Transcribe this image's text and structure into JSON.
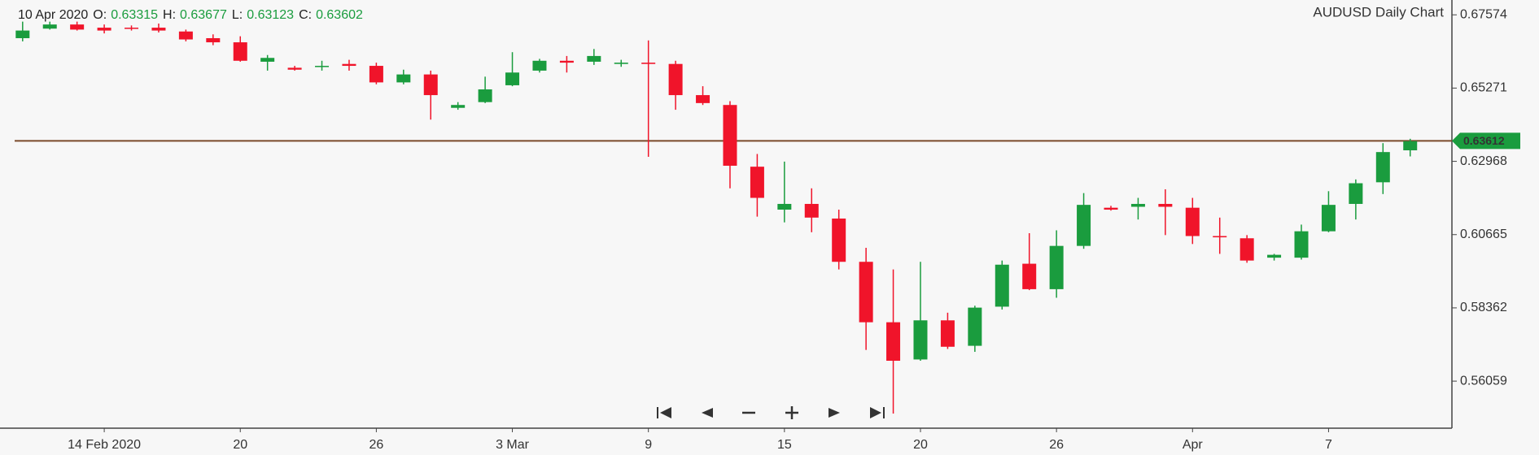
{
  "chart_data": {
    "type": "candlestick",
    "title": "AUDUSD Daily Chart",
    "info_date": "10 Apr 2020",
    "info_labels": [
      "O:",
      "H:",
      "L:",
      "C:"
    ],
    "categories": [
      null,
      null,
      null,
      "14 Feb 2020",
      null,
      null,
      null,
      null,
      "20",
      null,
      null,
      null,
      null,
      "26",
      null,
      null,
      null,
      null,
      "3 Mar",
      null,
      null,
      null,
      null,
      "9",
      null,
      null,
      null,
      null,
      "15",
      null,
      null,
      null,
      null,
      "20",
      null,
      null,
      null,
      null,
      "26",
      null,
      null,
      null,
      null,
      "Apr",
      null,
      null,
      null,
      null,
      "7",
      null,
      null,
      null
    ],
    "open": [
      0.6684,
      0.6714,
      0.6727,
      0.6717,
      0.6717,
      0.6717,
      0.6705,
      0.6684,
      0.6671,
      0.661,
      0.6591,
      0.6594,
      0.6603,
      0.6597,
      0.6545,
      0.657,
      0.6465,
      0.6483,
      0.6536,
      0.6582,
      0.6613,
      0.661,
      0.6603,
      0.6607,
      0.6603,
      0.6505,
      0.6474,
      0.628,
      0.6145,
      0.6163,
      0.6117,
      0.5981,
      0.5791,
      0.5674,
      0.5797,
      0.5717,
      0.584,
      0.5975,
      0.5895,
      0.6031,
      0.6151,
      0.6154,
      0.6163,
      0.6151,
      0.6062,
      0.6055,
      0.5994,
      0.5994,
      0.6077,
      0.6163,
      0.6231,
      0.63315
    ],
    "high": [
      0.6736,
      0.6736,
      0.6736,
      0.6727,
      0.6724,
      0.673,
      0.6711,
      0.6696,
      0.669,
      0.6631,
      0.6597,
      0.6613,
      0.6616,
      0.6607,
      0.6585,
      0.6582,
      0.6483,
      0.6563,
      0.664,
      0.6619,
      0.6628,
      0.665,
      0.6616,
      0.6677,
      0.6613,
      0.6533,
      0.6486,
      0.632,
      0.6296,
      0.6212,
      0.6145,
      0.6025,
      0.5957,
      0.5981,
      0.5821,
      0.5843,
      0.5985,
      0.6071,
      0.608,
      0.6197,
      0.6157,
      0.6182,
      0.6209,
      0.6182,
      0.612,
      0.6065,
      0.6006,
      0.6098,
      0.6203,
      0.624,
      0.6354,
      0.63677
    ],
    "low": [
      0.6674,
      0.6711,
      0.6708,
      0.6699,
      0.6708,
      0.6702,
      0.6674,
      0.6662,
      0.661,
      0.6582,
      0.6582,
      0.6582,
      0.6582,
      0.6539,
      0.6539,
      0.6428,
      0.6459,
      0.648,
      0.6533,
      0.6576,
      0.6576,
      0.66,
      0.6594,
      0.6311,
      0.6459,
      0.6474,
      0.6212,
      0.6123,
      0.6105,
      0.6074,
      0.5957,
      0.5704,
      0.5504,
      0.567,
      0.5707,
      0.5698,
      0.5831,
      0.5892,
      0.5868,
      0.6022,
      0.6142,
      0.6114,
      0.6065,
      0.6037,
      0.6006,
      0.5978,
      0.5985,
      0.5988,
      0.6074,
      0.6114,
      0.6194,
      0.63123
    ],
    "close": [
      0.6708,
      0.6727,
      0.6711,
      0.6708,
      0.6714,
      0.6708,
      0.668,
      0.6671,
      0.6613,
      0.6622,
      0.6585,
      0.6597,
      0.6597,
      0.6545,
      0.657,
      0.6505,
      0.6474,
      0.6523,
      0.6576,
      0.6613,
      0.6607,
      0.6628,
      0.6607,
      0.6603,
      0.6505,
      0.648,
      0.6283,
      0.6182,
      0.6163,
      0.612,
      0.5981,
      0.5791,
      0.567,
      0.5797,
      0.5714,
      0.5837,
      0.5972,
      0.5895,
      0.6031,
      0.616,
      0.6145,
      0.6163,
      0.6154,
      0.6062,
      0.6058,
      0.5985,
      0.6003,
      0.6077,
      0.616,
      0.6228,
      0.6326,
      0.63602
    ],
    "up_color": "#1a9c3e",
    "down_color": "#f0142a",
    "last_price": 0.63612,
    "last_price_line_color": "#7a4a2a",
    "ylim": [
      0.5458,
      0.6804
    ],
    "yticks": [
      0.67574,
      0.65271,
      0.62968,
      0.60665,
      0.58362,
      0.56059
    ]
  }
}
